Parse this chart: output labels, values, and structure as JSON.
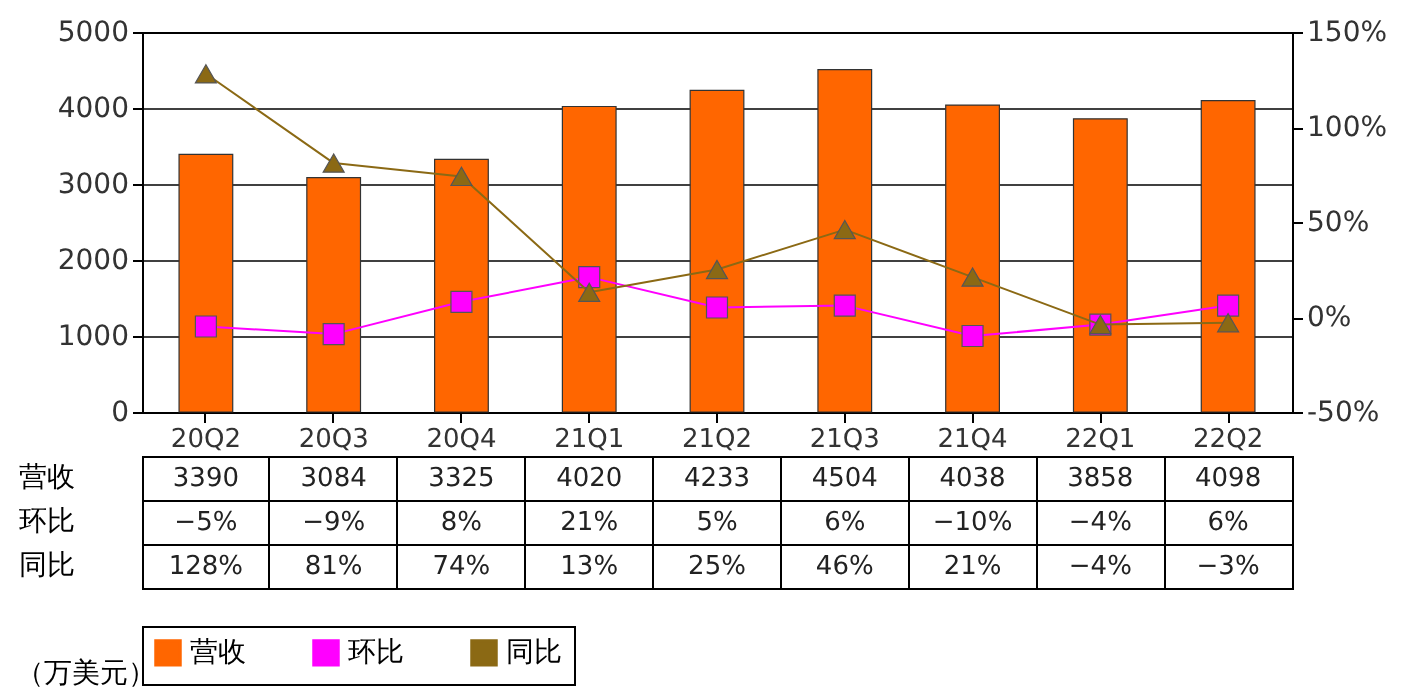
{
  "chart_data": {
    "type": "bar",
    "categories": [
      "20Q2",
      "20Q3",
      "20Q4",
      "21Q1",
      "21Q2",
      "21Q3",
      "21Q4",
      "22Q1",
      "22Q2"
    ],
    "series": [
      {
        "name": "营收",
        "color": "#ff6600",
        "values": [
          3390,
          3084,
          3325,
          4020,
          4233,
          4504,
          4038,
          3858,
          4098
        ],
        "value_labels": [
          "3390",
          "3084",
          "3325",
          "4020",
          "4233",
          "4504",
          "4038",
          "3858",
          "4098"
        ]
      },
      {
        "name": "环比",
        "type": "line",
        "axis": "y2",
        "marker": "square",
        "color": "#ff00ff",
        "values": [
          -5,
          -9,
          8,
          21,
          5,
          6,
          -10,
          -4,
          6
        ],
        "value_labels": [
          "−5%",
          "−9%",
          "8%",
          "21%",
          "5%",
          "6%",
          "−10%",
          "−4%",
          "6%"
        ]
      },
      {
        "name": "同比",
        "type": "line",
        "axis": "y2",
        "marker": "triangle",
        "color": "#8b6914",
        "values": [
          128,
          81,
          74,
          13,
          25,
          46,
          21,
          -4,
          -3
        ],
        "value_labels": [
          "128%",
          "81%",
          "74%",
          "13%",
          "25%",
          "46%",
          "21%",
          "−4%",
          "−3%"
        ]
      }
    ],
    "ylim": [
      0,
      5000
    ],
    "yticks": [
      0,
      1000,
      2000,
      3000,
      4000,
      5000
    ],
    "y2lim": [
      -50,
      150
    ],
    "y2ticks": [
      {
        "value": -50,
        "label": "-50%"
      },
      {
        "value": 0,
        "label": "0%"
      },
      {
        "value": 50,
        "label": "50%"
      },
      {
        "value": 100,
        "label": "100%"
      },
      {
        "value": 150,
        "label": "150%"
      }
    ],
    "grid": "y",
    "legend": "bottom",
    "annotations": [
      "（万美元）"
    ]
  }
}
